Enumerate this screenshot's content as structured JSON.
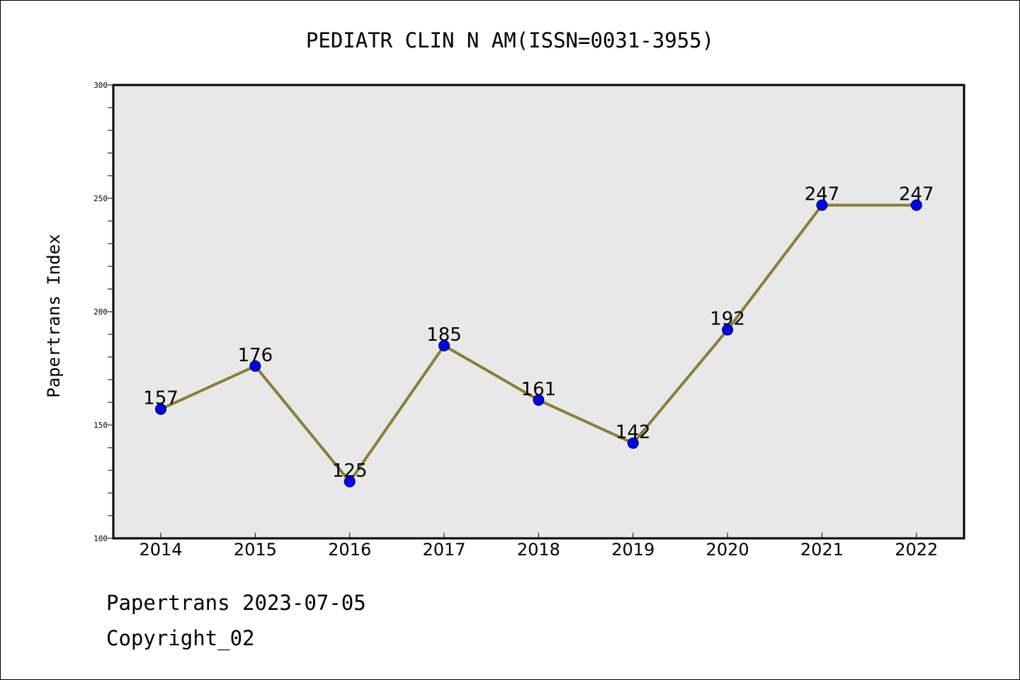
{
  "chart_data": {
    "type": "line",
    "title": "PEDIATR CLIN N AM(ISSN=0031-3955)",
    "xlabel": "",
    "ylabel": "Papertrans Index",
    "categories": [
      "2014",
      "2015",
      "2016",
      "2017",
      "2018",
      "2019",
      "2020",
      "2021",
      "2022"
    ],
    "values": [
      157,
      176,
      125,
      185,
      161,
      142,
      192,
      247,
      247
    ],
    "data_labels": [
      "157",
      "176",
      "125",
      "185",
      "161",
      "142",
      "192",
      "247",
      "247"
    ],
    "ylim": [
      100,
      300
    ],
    "yticks": [
      "100",
      "150",
      "200",
      "250",
      "300"
    ],
    "grid": false,
    "legend": "none",
    "colors": {
      "line": "#8b7d3a",
      "marker": "#0000ff",
      "plot_background": "#e8e8e8"
    }
  },
  "footer": {
    "date": "Papertrans 2023-07-05",
    "copyright": "Copyright_02"
  }
}
